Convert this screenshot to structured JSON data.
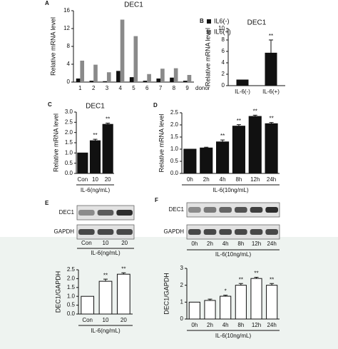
{
  "chart_data": [
    {
      "type": "bar",
      "panel": "A",
      "title": "DEC1",
      "ylabel": "Relative mRNA level",
      "xlabel": "donor",
      "categories": [
        "1",
        "2",
        "3",
        "4",
        "5",
        "6",
        "7",
        "8",
        "9"
      ],
      "series": [
        {
          "name": "IL6(-)",
          "color": "#111111",
          "values": [
            0.8,
            0.3,
            0.2,
            2.5,
            1.1,
            0.3,
            0.8,
            1.0,
            0.3
          ]
        },
        {
          "name": "IL6(+)",
          "color": "#8a8a8a",
          "values": [
            4.8,
            3.9,
            2.2,
            14.0,
            10.3,
            1.8,
            3.0,
            3.1,
            1.6
          ]
        }
      ],
      "ylim": [
        0,
        16
      ],
      "yticks": [
        0,
        4,
        8,
        12,
        16
      ],
      "legend": "top-right"
    },
    {
      "type": "bar",
      "panel": "B",
      "title": "DEC1",
      "ylabel": "Relative mRNA level",
      "categories": [
        "IL-6(-)",
        "IL-6(+)"
      ],
      "values": [
        1,
        5.7
      ],
      "errors": [
        0,
        2.3
      ],
      "annotations": [
        null,
        "**"
      ],
      "color": "#111111",
      "ylim": [
        0,
        10
      ],
      "yticks": [
        0,
        2,
        4,
        6,
        8,
        10
      ]
    },
    {
      "type": "bar",
      "panel": "C",
      "title": "DEC1",
      "ylabel": "Relative mRNA level",
      "xlabel": "IL-6(ng/mL)",
      "categories": [
        "Con",
        "10",
        "20"
      ],
      "values": [
        1,
        1.6,
        2.4
      ],
      "errors": [
        0,
        0.07,
        0.06
      ],
      "annotations": [
        null,
        "**",
        "**"
      ],
      "color": "#111111",
      "ylim": [
        0,
        3
      ],
      "yticks": [
        {
          "value": 0,
          "label": "0.0"
        },
        0.5,
        {
          "value": 1,
          "label": "1.0"
        },
        1.5,
        {
          "value": 2,
          "label": "2.0"
        },
        2.5,
        {
          "value": 3,
          "label": "3.0"
        }
      ]
    },
    {
      "type": "bar",
      "panel": "D",
      "ylabel": "Relative mRNA level",
      "xlabel": "IL-6(10ng/mL)",
      "categories": [
        "0h",
        "2h",
        "4h",
        "8h",
        "12h",
        "24h"
      ],
      "values": [
        1.0,
        1.05,
        1.3,
        1.95,
        2.35,
        2.05
      ],
      "errors": [
        0,
        0.03,
        0.08,
        0.06,
        0.05,
        0.05
      ],
      "annotations": [
        null,
        null,
        "**",
        "**",
        "**",
        "**"
      ],
      "color": "#111111",
      "ylim": [
        0,
        2.5
      ],
      "yticks": [
        {
          "value": 0,
          "label": "0.0"
        },
        0.5,
        {
          "value": 1,
          "label": "1.0"
        },
        1.5,
        {
          "value": 2,
          "label": "2.0"
        },
        2.5
      ]
    },
    {
      "type": "bar",
      "ylabel": "DEC1/GAPDH",
      "xlabel": "IL-6(ng/mL)",
      "categories": [
        "Con",
        "10",
        "20"
      ],
      "values": [
        1,
        1.85,
        2.25
      ],
      "errors": [
        0,
        0.12,
        0.08
      ],
      "annotations": [
        null,
        "**",
        "**"
      ],
      "color": "#ffffff",
      "ylim": [
        0,
        2.5
      ],
      "yticks": [
        {
          "value": 0,
          "label": "0.0"
        },
        0.5,
        {
          "value": 1,
          "label": "1.0"
        },
        1.5,
        {
          "value": 2,
          "label": "2.0"
        },
        2.5
      ]
    },
    {
      "type": "bar",
      "ylabel": "DEC1/GAPDH",
      "xlabel": "IL-6(10ng/mL)",
      "categories": [
        "0h",
        "2h",
        "4h",
        "8h",
        "12h",
        "24h"
      ],
      "values": [
        1,
        1.1,
        1.35,
        2.0,
        2.4,
        2.0
      ],
      "errors": [
        0,
        0.08,
        0.06,
        0.1,
        0.07,
        0.1
      ],
      "annotations": [
        null,
        null,
        "*",
        "**",
        "**",
        "**"
      ],
      "color": "#ffffff",
      "ylim": [
        0,
        3
      ],
      "yticks": [
        0,
        1,
        2,
        3
      ]
    }
  ],
  "blots": [
    {
      "panel": "E",
      "rows": [
        "DEC1",
        "GAPDH"
      ],
      "lanes": [
        "Con",
        "10",
        "20"
      ],
      "xlabel": "IL-6(ng/mL)"
    },
    {
      "panel": "F",
      "rows": [
        "DEC1",
        "GAPDH"
      ],
      "lanes": [
        "0h",
        "2h",
        "4h",
        "8h",
        "12h",
        "24h"
      ],
      "xlabel": "IL-6(10ng/mL)"
    }
  ]
}
